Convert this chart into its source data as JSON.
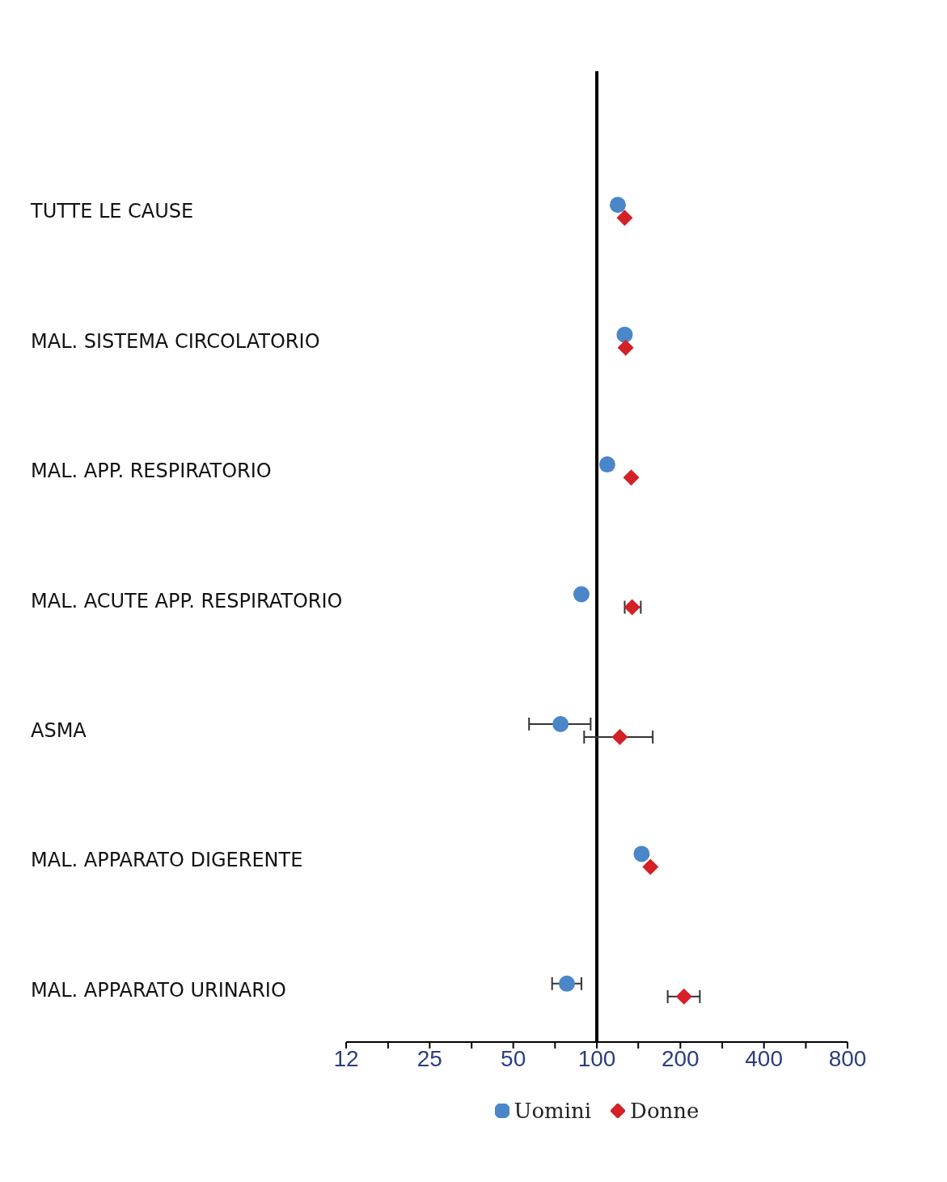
{
  "chart_data": {
    "type": "scatter",
    "categories": [
      "TUTTE LE CAUSE",
      "MAL. SISTEMA CIRCOLATORIO",
      "MAL. APP. RESPIRATORIO",
      "MAL. ACUTE APP. RESPIRATORIO",
      "ASMA",
      "MAL. APPARATO DIGERENTE",
      "MAL. APPARATO URINARIO"
    ],
    "series": [
      {
        "name": "Uomini",
        "color": "#4a86c8",
        "marker": "circle",
        "values": [
          119,
          126,
          109,
          88,
          74,
          145,
          78
        ],
        "errors": [
          null,
          null,
          null,
          null,
          [
            57,
            95
          ],
          null,
          [
            69,
            88
          ]
        ]
      },
      {
        "name": "Donne",
        "color": "#d42027",
        "marker": "diamond",
        "values": [
          126,
          127,
          133,
          134,
          121,
          156,
          206
        ],
        "errors": [
          null,
          null,
          null,
          [
            126,
            144
          ],
          [
            90,
            159
          ],
          null,
          [
            180,
            235
          ]
        ]
      }
    ],
    "orientation": "horizontal",
    "log": "x",
    "xlim": [
      12.5,
      800
    ],
    "xticks": [
      {
        "value": 12.5,
        "label": "12"
      },
      {
        "value": 17.7,
        "label": null
      },
      25,
      {
        "value": 35.4,
        "label": null
      },
      50,
      {
        "value": 70.7,
        "label": null
      },
      100,
      {
        "value": 141,
        "label": null
      },
      200,
      {
        "value": 283,
        "label": null
      },
      400,
      {
        "value": 566,
        "label": null
      },
      800
    ],
    "ref_lines": [
      {
        "axis": "x",
        "value": 100,
        "color": "#000000"
      }
    ],
    "grid": false,
    "legend": "bottom"
  }
}
